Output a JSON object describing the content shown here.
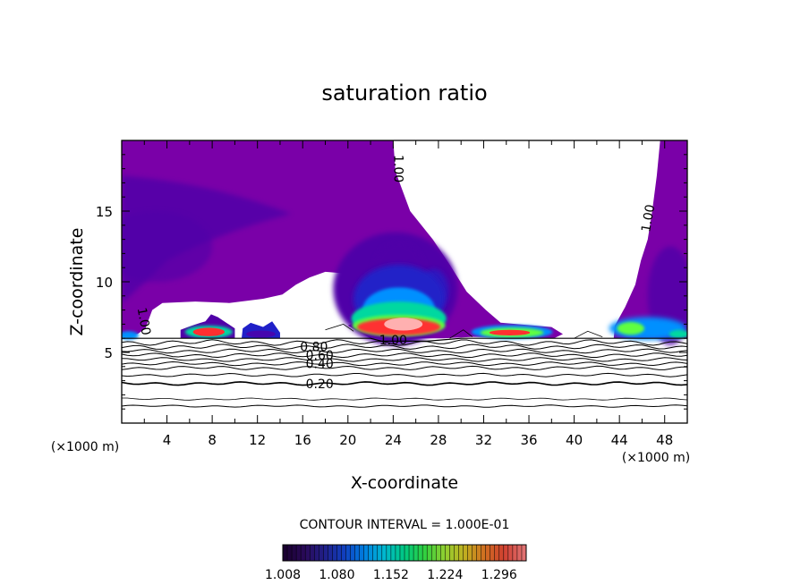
{
  "chart_data": {
    "type": "contour",
    "title": "saturation ratio",
    "xlabel": "X-coordinate",
    "ylabel": "Z-coordinate",
    "x_unit_left": "(×1000 m)",
    "x_unit_right": "(×1000 m)",
    "xlim": [
      0,
      50
    ],
    "ylim": [
      0,
      20
    ],
    "xticks": [
      4,
      8,
      12,
      16,
      20,
      24,
      28,
      32,
      36,
      40,
      44,
      48
    ],
    "yticks": [
      5,
      10,
      15
    ],
    "contour_interval_label": "CONTOUR INTERVAL = 1.000E-01",
    "colorbar_labels": [
      "1.008",
      "1.080",
      "1.152",
      "1.224",
      "1.296"
    ],
    "colorbar_range": [
      1.008,
      1.332
    ],
    "contour_line_labels": [
      {
        "text": "0.20",
        "x": 17.5,
        "z": 2.8
      },
      {
        "text": "0.40",
        "x": 17.5,
        "z": 4.2
      },
      {
        "text": "0.60",
        "x": 17.5,
        "z": 4.8
      },
      {
        "text": "0.80",
        "x": 17.0,
        "z": 5.4
      },
      {
        "text": "1.00",
        "x": 24.0,
        "z": 5.9
      },
      {
        "text": "1.00",
        "x": 24.5,
        "z": 18.0
      },
      {
        "text": "1.00",
        "x": 2.0,
        "z": 7.2
      },
      {
        "text": "1.00",
        "x": 46.5,
        "z": 14.5
      }
    ],
    "colors": {
      "s_1_00": "#7a00a8",
      "s_1_04": "#5000a8",
      "s_1_08": "#2020c8",
      "s_1_12": "#0090ff",
      "s_1_18": "#00d8a0",
      "s_1_22": "#60ff40",
      "s_1_26": "#ffa000",
      "s_1_30": "#ff3030",
      "s_1_33": "#ffb0b0"
    }
  }
}
